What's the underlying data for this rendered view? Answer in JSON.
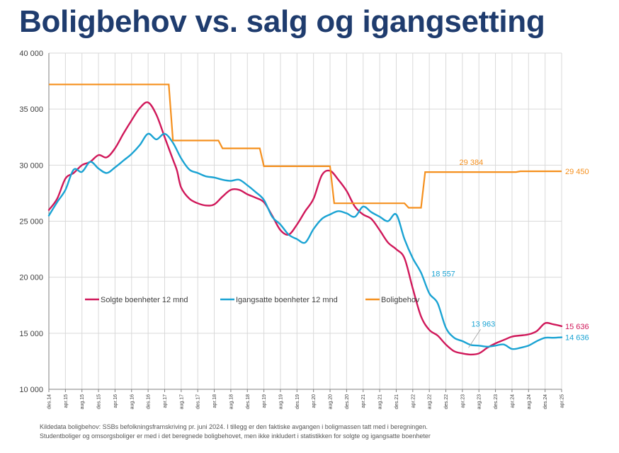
{
  "title": "Boligbehov vs. salg og igangsetting",
  "notes": [
    "Kildedata boligbehov: SSBs befolkningsframskriving pr. juni 2024. I tillegg er den faktiske avgangen i boligmassen tatt med i beregningen.",
    "Studentboliger og omsorgsboliger er med i det beregnede boligbehovet, men ikke inkludert i statistikken for solgte og igangsatte boenheter"
  ],
  "chart_data": {
    "type": "line",
    "title": "Boligbehov vs. salg og igangsetting",
    "ylim": [
      10000,
      40000
    ],
    "y_ticks": [
      10000,
      15000,
      20000,
      25000,
      30000,
      35000,
      40000
    ],
    "y_tick_labels": [
      "10 000",
      "15 000",
      "20 000",
      "25 000",
      "30 000",
      "35 000",
      "40 000"
    ],
    "x_tick_labels": [
      "des.14",
      "apr.15",
      "aug.15",
      "des.15",
      "apr.16",
      "aug.16",
      "des.16",
      "apr.17",
      "aug.17",
      "des.17",
      "apr.18",
      "aug.18",
      "des.18",
      "apr.19",
      "aug.19",
      "des.19",
      "apr.20",
      "aug.20",
      "des.20",
      "apr.21",
      "aug.21",
      "des.21",
      "apr.22",
      "aug.22",
      "des.22",
      "apr.23",
      "aug.23",
      "des.23",
      "apr.24",
      "aug.24",
      "des.24",
      "apr.25"
    ],
    "legend_position": "middle-left",
    "series": [
      {
        "name": "Solgte boenheter 12 mnd",
        "color": "#d0185a",
        "x": [
          0,
          2,
          4,
          6,
          8,
          10,
          12,
          14,
          16,
          18,
          20,
          22,
          24,
          26,
          28,
          30,
          31,
          32,
          34,
          36,
          38,
          40,
          42,
          44,
          46,
          48,
          50,
          52,
          54,
          56,
          58,
          60,
          62,
          64,
          66,
          68,
          70,
          72,
          74,
          76,
          78,
          80,
          82,
          84,
          86,
          88,
          90,
          92,
          94,
          96,
          98,
          100,
          102,
          104,
          106,
          108,
          110,
          112,
          114,
          116,
          118,
          120,
          122,
          124
        ],
        "values": [
          26000,
          27000,
          28800,
          29300,
          30000,
          30300,
          30900,
          30700,
          31500,
          32800,
          34000,
          35100,
          35600,
          34500,
          32500,
          30500,
          29500,
          28000,
          27000,
          26600,
          26400,
          26500,
          27200,
          27800,
          27800,
          27400,
          27100,
          26700,
          25500,
          24200,
          23800,
          24700,
          25900,
          27000,
          29100,
          29500,
          28700,
          27700,
          26300,
          25600,
          25200,
          24200,
          23100,
          22500,
          21700,
          19000,
          16500,
          15300,
          14800,
          14000,
          13400,
          13200,
          13100,
          13200,
          13700,
          14100,
          14400,
          14700,
          14800,
          14900,
          15200,
          15900,
          15800,
          15636
        ],
        "end_label": "15 636"
      },
      {
        "name": "Igangsatte boenheter 12 mnd",
        "color": "#1aa3d3",
        "x": [
          0,
          2,
          4,
          6,
          8,
          10,
          12,
          14,
          16,
          18,
          20,
          22,
          24,
          26,
          28,
          30,
          32,
          34,
          36,
          38,
          40,
          42,
          44,
          46,
          48,
          50,
          52,
          54,
          56,
          58,
          60,
          62,
          64,
          66,
          68,
          70,
          72,
          74,
          76,
          78,
          80,
          82,
          84,
          86,
          88,
          90,
          92,
          94,
          96,
          98,
          100,
          102,
          104,
          106,
          108,
          110,
          112,
          114,
          116,
          118,
          120,
          122,
          124
        ],
        "values": [
          25500,
          26700,
          27800,
          29600,
          29400,
          30300,
          29700,
          29300,
          29800,
          30400,
          31000,
          31800,
          32800,
          32300,
          32800,
          32000,
          30600,
          29600,
          29300,
          29000,
          28900,
          28700,
          28600,
          28700,
          28200,
          27600,
          26900,
          25400,
          24700,
          23800,
          23400,
          23100,
          24300,
          25200,
          25600,
          25900,
          25700,
          25400,
          26300,
          25800,
          25400,
          25000,
          25600,
          23400,
          21700,
          20400,
          18557,
          17700,
          15500,
          14600,
          14300,
          13963,
          13900,
          13800,
          13900,
          14000,
          13600,
          13700,
          13900,
          14300,
          14600,
          14600,
          14636
        ],
        "labels": [
          {
            "x": 92,
            "text": "18 557"
          },
          {
            "x": 102,
            "text": "13 963"
          }
        ],
        "end_label": "14 636"
      },
      {
        "name": "Boligbehov",
        "color": "#f5901e",
        "step": true,
        "x": [
          0,
          29,
          30,
          41,
          42,
          51,
          52,
          68,
          69,
          86,
          87,
          90,
          91,
          113,
          114,
          124
        ],
        "values": [
          37200,
          37200,
          32200,
          32200,
          31500,
          31500,
          29900,
          29900,
          26600,
          26600,
          26200,
          26200,
          29384,
          29384,
          29450,
          29450
        ],
        "labels": [
          {
            "x": 102,
            "text": "29 384"
          }
        ],
        "end_label": "29 450"
      }
    ]
  }
}
